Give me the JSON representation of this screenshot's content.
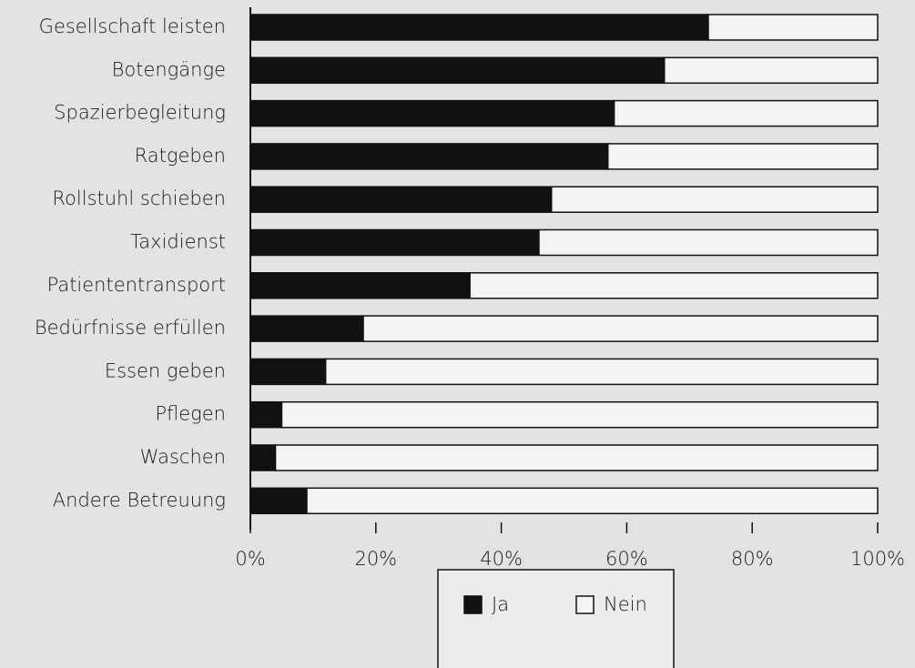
{
  "chart_data": {
    "type": "stacked-barh",
    "categories": [
      "Gesellschaft leisten",
      "Botengänge",
      "Spazierbegleitung",
      "Ratgeben",
      "Rollstuhl schieben",
      "Taxidienst",
      "Patiententransport",
      "Bedürfnisse erfüllen",
      "Essen geben",
      "Pflegen",
      "Waschen",
      "Andere Betreuung"
    ],
    "series": [
      {
        "name": "Ja",
        "color": "#111111",
        "values": [
          73,
          66,
          58,
          57,
          48,
          46,
          35,
          18,
          12,
          5,
          4,
          9
        ]
      },
      {
        "name": "Nein",
        "color": "#f4f4f4",
        "values": [
          27,
          34,
          42,
          43,
          52,
          54,
          65,
          82,
          88,
          95,
          96,
          91
        ]
      }
    ],
    "xlim": [
      0,
      100
    ],
    "xticks": [
      {
        "value": 0,
        "label": "0%"
      },
      {
        "value": 20,
        "label": "20%"
      },
      {
        "value": 40,
        "label": "40%"
      },
      {
        "value": 60,
        "label": "60%"
      },
      {
        "value": 80,
        "label": "80%"
      },
      {
        "value": 100,
        "label": "100%"
      }
    ],
    "legend": "bottom"
  }
}
